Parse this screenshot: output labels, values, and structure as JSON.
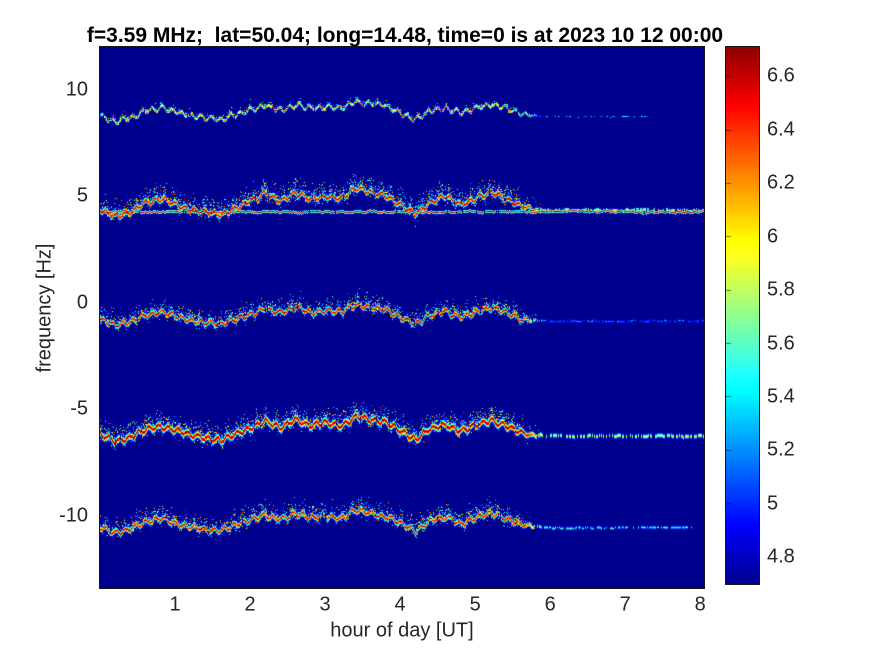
{
  "chart_data": {
    "type": "heatmap",
    "title": "f=3.59 MHz;  lat=50.04; long=14.48, time=0 is at 2023 10 12 00:00",
    "xlabel": "hour of day [UT]",
    "ylabel": "frequency [Hz]",
    "x_ticks": [
      1,
      2,
      3,
      4,
      5,
      6,
      7,
      8
    ],
    "y_ticks": [
      10,
      5,
      0,
      -5,
      -10
    ],
    "x_range": [
      0,
      8.05
    ],
    "y_range": [
      -13.4,
      12.0
    ],
    "colormap": "jet",
    "clim": [
      4.7,
      6.71
    ],
    "colorbar_ticks": [
      6.6,
      6.4,
      6.2,
      6.0,
      5.8,
      5.6,
      5.4,
      5.2,
      5.0,
      4.8
    ],
    "background_value": 4.7,
    "background_color": "#00008f",
    "axis_text_color": "#262626",
    "legend": "colorbar-right",
    "grid": false,
    "sample_times": [
      0,
      0.2,
      0.4,
      0.6,
      0.8,
      1,
      1.2,
      1.4,
      1.6,
      1.8,
      2,
      2.2,
      2.4,
      2.6,
      2.8,
      3,
      3.2,
      3.4,
      3.6,
      3.8,
      4,
      4.2,
      4.4,
      4.6,
      4.8,
      5,
      5.2,
      5.4,
      5.6,
      5.8,
      6,
      6.2,
      6.4,
      6.6,
      6.8,
      7,
      7.2,
      7.4,
      7.6,
      7.8,
      8
    ],
    "modulation_hz": [
      0.05,
      -0.3,
      -0.1,
      0.35,
      0.55,
      0.3,
      0.05,
      -0.1,
      -0.2,
      0.1,
      0.45,
      0.75,
      0.45,
      0.85,
      0.55,
      0.65,
      0.55,
      1.05,
      0.85,
      0.7,
      0.25,
      -0.2,
      0.4,
      0.6,
      0.25,
      0.55,
      0.85,
      0.55,
      0.2,
      0.05,
      0,
      0,
      0,
      0,
      0,
      0,
      0,
      0,
      0,
      0,
      0
    ],
    "fade_start": 5.5,
    "fade_end": 5.9,
    "traces": [
      {
        "name": "band-plus-9hz",
        "base_freq": 8.75,
        "offset_scale": 0.7,
        "core_sigma": 0.95,
        "halo_sigma": 1.8,
        "peak_value": 6.15,
        "tail_value": 4.95,
        "value_noise": 1.4,
        "tail": 0.1,
        "end_time": 7.3,
        "tail_fade": true
      },
      {
        "name": "band-plus-4hz-baseline",
        "base_freq": 4.28,
        "offset_scale": 0,
        "core_sigma": 0.8,
        "halo_sigma": 0.5,
        "peak_value": 6.5,
        "tail_value": 6.3,
        "value_noise": 0.5,
        "tail": 0.9,
        "end_time": 8.1,
        "tail_fade": false
      },
      {
        "name": "band-plus-4hz",
        "base_freq": 4.35,
        "offset_scale": 1.0,
        "core_sigma": 1.5,
        "halo_sigma": 5.5,
        "peak_value": 6.65,
        "tail_value": 6.0,
        "value_noise": 0.5,
        "tail": 0.25,
        "end_time": 8.1,
        "tail_fade": false
      },
      {
        "name": "band-minus-1hz",
        "base_freq": -0.85,
        "offset_scale": 0.75,
        "core_sigma": 1.4,
        "halo_sigma": 4.5,
        "peak_value": 6.65,
        "tail_value": 5.1,
        "value_noise": 0.5,
        "tail": 0.1,
        "end_time": 8.1,
        "tail_fade": false
      },
      {
        "name": "band-minus-6hz",
        "base_freq": -6.25,
        "offset_scale": 0.9,
        "core_sigma": 2.0,
        "halo_sigma": 6.0,
        "peak_value": 6.7,
        "tail_value": 5.8,
        "value_noise": 0.45,
        "tail": 0.2,
        "end_time": 8.1,
        "tail_fade": false
      },
      {
        "name": "band-minus-10hz",
        "base_freq": -10.55,
        "offset_scale": 0.8,
        "core_sigma": 1.5,
        "halo_sigma": 5.0,
        "peak_value": 6.6,
        "tail_value": 5.5,
        "value_noise": 0.55,
        "tail": 0.15,
        "end_time": 7.9,
        "tail_fade": true
      }
    ]
  }
}
